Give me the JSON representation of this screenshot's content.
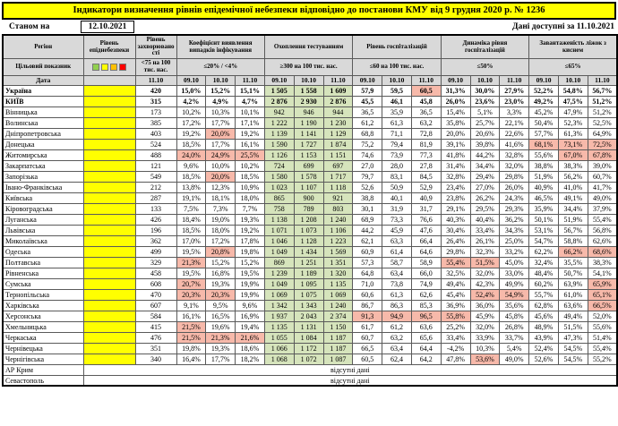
{
  "title": "Індикатори визначення рівнів епідемічної небезпеки відповідно до постанови КМУ від 9 грудня 2020 р. № 1236",
  "top": {
    "as_of_label": "Станом на",
    "as_of_date": "12.10.2021",
    "data_available": "Дані доступні за 11.10.2021"
  },
  "colors": {
    "title_bg": "#ffff00",
    "header_bg": "#d9d9d9",
    "level_yellow": "#ffff00",
    "green": "#d6e4bc",
    "red": "#f7b9aa"
  },
  "header": {
    "region": "Регіон",
    "level": "Рівень епіднебезпеки",
    "target_row_label": "Цільовий показник",
    "date_row_label": "Дата",
    "single_date": "11.10",
    "dates": [
      "09.10",
      "10.10",
      "11.10"
    ],
    "legend_colors": [
      "#92d050",
      "#ffff00",
      "#ffc000",
      "#ff0000"
    ],
    "groups": [
      {
        "label": "Рівень захворюваності",
        "target": "<75 на 100 тис. нас."
      },
      {
        "label": "Коефіцієнт виявлення випадків інфікування",
        "target": "≤20% / <4%"
      },
      {
        "label": "Охоплення тестуванням",
        "target": "≥300 на 100 тис. нас."
      },
      {
        "label": "Рівень госпіталізацій",
        "target": "≤60 на 100 тис. нас."
      },
      {
        "label": "Динаміка рівня госпіталізацій",
        "target": "≤50%"
      },
      {
        "label": "Завантаженість ліжок з киснем",
        "target": "≤65%"
      }
    ]
  },
  "rows": [
    {
      "region": "Україна",
      "bold": true,
      "values": [
        "420",
        "15,0%",
        "15,2%",
        "15,1%",
        "1 505",
        "1 558",
        "1 609",
        "57,9",
        "59,5",
        "60,5",
        "31,3%",
        "30,0%",
        "27,9%",
        "52,2%",
        "54,8%",
        "56,7%"
      ],
      "flags": "wwwwgggwwrwwwwww"
    },
    {
      "region": "КИЇВ",
      "bold": true,
      "values": [
        "315",
        "4,2%",
        "4,9%",
        "4,7%",
        "2 876",
        "2 930",
        "2 876",
        "45,5",
        "46,1",
        "45,8",
        "26,0%",
        "23,6%",
        "23,0%",
        "49,2%",
        "47,5%",
        "51,2%"
      ],
      "flags": "wwwwgggwwwwwwwww"
    },
    {
      "region": "Вінницька",
      "bold": false,
      "values": [
        "173",
        "10,2%",
        "10,3%",
        "10,1%",
        "942",
        "946",
        "944",
        "36,5",
        "35,9",
        "36,5",
        "15,4%",
        "5,1%",
        "3,3%",
        "45,2%",
        "47,9%",
        "51,2%"
      ],
      "flags": "wwwwgggwwwwwwwww"
    },
    {
      "region": "Волинська",
      "bold": false,
      "values": [
        "385",
        "17,2%",
        "17,7%",
        "17,1%",
        "1 222",
        "1 190",
        "1 230",
        "61,2",
        "61,3",
        "63,2",
        "35,8%",
        "25,7%",
        "22,1%",
        "50,4%",
        "52,3%",
        "52,5%"
      ],
      "flags": "wwwwgggwwwwwwwww"
    },
    {
      "region": "Дніпропетровська",
      "bold": false,
      "values": [
        "403",
        "19,2%",
        "20,0%",
        "19,2%",
        "1 139",
        "1 141",
        "1 129",
        "68,8",
        "71,1",
        "72,8",
        "20,0%",
        "20,6%",
        "22,6%",
        "57,7%",
        "61,3%",
        "64,9%"
      ],
      "flags": "wwrwgggwwwwwwwww"
    },
    {
      "region": "Донецька",
      "bold": false,
      "values": [
        "524",
        "18,5%",
        "17,7%",
        "16,1%",
        "1 590",
        "1 727",
        "1 874",
        "75,2",
        "79,4",
        "81,9",
        "39,1%",
        "39,8%",
        "41,6%",
        "68,1%",
        "73,1%",
        "72,5%"
      ],
      "flags": "wwwwgggwwwwwwrrr"
    },
    {
      "region": "Житомирська",
      "bold": false,
      "values": [
        "488",
        "24,0%",
        "24,9%",
        "25,5%",
        "1 126",
        "1 153",
        "1 151",
        "74,6",
        "73,9",
        "77,3",
        "41,8%",
        "44,2%",
        "32,8%",
        "55,6%",
        "67,0%",
        "67,8%"
      ],
      "flags": "wrrrgggwwwwwwwrr"
    },
    {
      "region": "Закарпатська",
      "bold": false,
      "values": [
        "121",
        "9,6%",
        "10,0%",
        "10,2%",
        "724",
        "699",
        "697",
        "27,0",
        "28,0",
        "27,8",
        "31,4%",
        "34,4%",
        "32,0%",
        "38,8%",
        "38,3%",
        "39,0%"
      ],
      "flags": "wwwwgggwwwwwwwww"
    },
    {
      "region": "Запорізька",
      "bold": false,
      "values": [
        "549",
        "18,5%",
        "20,0%",
        "18,5%",
        "1 580",
        "1 578",
        "1 717",
        "79,7",
        "83,1",
        "84,5",
        "32,8%",
        "29,4%",
        "29,8%",
        "51,9%",
        "56,2%",
        "60,7%"
      ],
      "flags": "wwrwgggwwwwwwwww"
    },
    {
      "region": "Івано-Франківська",
      "bold": false,
      "values": [
        "212",
        "13,8%",
        "12,3%",
        "10,9%",
        "1 023",
        "1 107",
        "1 118",
        "52,6",
        "50,9",
        "52,9",
        "23,4%",
        "27,0%",
        "26,0%",
        "40,9%",
        "41,0%",
        "41,7%"
      ],
      "flags": "wwwwgggwwwwwwwww"
    },
    {
      "region": "Київська",
      "bold": false,
      "values": [
        "287",
        "19,1%",
        "18,1%",
        "18,0%",
        "865",
        "900",
        "921",
        "38,8",
        "40,1",
        "40,9",
        "23,8%",
        "26,2%",
        "24,3%",
        "46,5%",
        "49,1%",
        "49,0%"
      ],
      "flags": "wwwwgggwwwwwwwww"
    },
    {
      "region": "Кіровоградська",
      "bold": false,
      "values": [
        "133",
        "7,5%",
        "7,3%",
        "7,7%",
        "758",
        "789",
        "803",
        "30,1",
        "31,9",
        "31,7",
        "29,1%",
        "29,5%",
        "29,3%",
        "35,9%",
        "34,4%",
        "37,9%"
      ],
      "flags": "wwwwgggwwwwwwwww"
    },
    {
      "region": "Луганська",
      "bold": false,
      "values": [
        "426",
        "18,4%",
        "19,0%",
        "19,3%",
        "1 138",
        "1 208",
        "1 240",
        "68,9",
        "73,3",
        "76,6",
        "40,3%",
        "40,4%",
        "36,2%",
        "50,1%",
        "51,9%",
        "55,4%"
      ],
      "flags": "wwwwgggwwwwwwwww"
    },
    {
      "region": "Львівська",
      "bold": false,
      "values": [
        "196",
        "18,5%",
        "18,0%",
        "19,2%",
        "1 071",
        "1 073",
        "1 106",
        "44,2",
        "45,9",
        "47,6",
        "30,4%",
        "33,4%",
        "34,3%",
        "53,1%",
        "56,7%",
        "56,8%"
      ],
      "flags": "wwwwgggwwwwwwwww"
    },
    {
      "region": "Миколаївська",
      "bold": false,
      "values": [
        "362",
        "17,0%",
        "17,2%",
        "17,8%",
        "1 046",
        "1 128",
        "1 223",
        "62,1",
        "63,3",
        "66,4",
        "26,4%",
        "26,1%",
        "25,0%",
        "54,7%",
        "58,8%",
        "62,6%"
      ],
      "flags": "wwwwgggwwwwwwwww"
    },
    {
      "region": "Одеська",
      "bold": false,
      "values": [
        "499",
        "19,5%",
        "20,8%",
        "19,8%",
        "1 049",
        "1 434",
        "1 569",
        "60,9",
        "61,4",
        "64,6",
        "29,8%",
        "32,3%",
        "33,2%",
        "62,2%",
        "66,2%",
        "68,6%"
      ],
      "flags": "wwrwgggwwwwwwwrr"
    },
    {
      "region": "Полтавська",
      "bold": false,
      "values": [
        "329",
        "21,3%",
        "15,2%",
        "15,2%",
        "869",
        "1 251",
        "1 351",
        "57,3",
        "58,7",
        "58,9",
        "55,4%",
        "51,5%",
        "45,0%",
        "32,4%",
        "35,5%",
        "38,3%"
      ],
      "flags": "wrwwgggwwwrrwwww"
    },
    {
      "region": "Рівненська",
      "bold": false,
      "values": [
        "458",
        "19,5%",
        "16,8%",
        "19,5%",
        "1 239",
        "1 189",
        "1 320",
        "64,8",
        "63,4",
        "66,0",
        "32,5%",
        "32,0%",
        "33,0%",
        "48,4%",
        "50,7%",
        "54,1%"
      ],
      "flags": "wwwwgggwwwwwwwww"
    },
    {
      "region": "Сумська",
      "bold": false,
      "values": [
        "608",
        "20,7%",
        "19,3%",
        "19,9%",
        "1 049",
        "1 095",
        "1 135",
        "71,0",
        "73,8",
        "74,9",
        "49,4%",
        "42,3%",
        "49,9%",
        "60,2%",
        "63,9%",
        "65,9%"
      ],
      "flags": "wrwwgggwwwwwwwwr"
    },
    {
      "region": "Тернопільська",
      "bold": false,
      "values": [
        "470",
        "20,3%",
        "20,3%",
        "19,9%",
        "1 069",
        "1 075",
        "1 069",
        "60,6",
        "61,3",
        "62,6",
        "45,4%",
        "52,4%",
        "54,9%",
        "55,7%",
        "61,0%",
        "65,1%"
      ],
      "flags": "wrrwgggwwwwrrwwr"
    },
    {
      "region": "Харківська",
      "bold": false,
      "values": [
        "607",
        "9,1%",
        "9,5%",
        "9,6%",
        "1 342",
        "1 343",
        "1 240",
        "86,7",
        "86,3",
        "85,3",
        "36,9%",
        "36,0%",
        "35,6%",
        "62,8%",
        "63,6%",
        "66,5%"
      ],
      "flags": "wwwwgggwwwwwwwwr"
    },
    {
      "region": "Херсонська",
      "bold": false,
      "values": [
        "584",
        "16,1%",
        "16,5%",
        "16,9%",
        "1 937",
        "2 043",
        "2 374",
        "91,3",
        "94,9",
        "96,5",
        "55,8%",
        "45,9%",
        "45,8%",
        "45,6%",
        "49,4%",
        "52,0%"
      ],
      "flags": "wwwwgggrrrrwwwww"
    },
    {
      "region": "Хмельницька",
      "bold": false,
      "values": [
        "415",
        "21,5%",
        "19,6%",
        "19,4%",
        "1 135",
        "1 131",
        "1 150",
        "61,7",
        "61,2",
        "63,6",
        "25,2%",
        "32,0%",
        "26,8%",
        "48,9%",
        "51,5%",
        "55,6%"
      ],
      "flags": "wrwwgggwwwwwwwww"
    },
    {
      "region": "Черкаська",
      "bold": false,
      "values": [
        "476",
        "21,5%",
        "21,3%",
        "21,6%",
        "1 055",
        "1 084",
        "1 187",
        "60,7",
        "63,2",
        "65,6",
        "33,4%",
        "33,9%",
        "33,7%",
        "43,9%",
        "47,3%",
        "51,4%"
      ],
      "flags": "wrrrgggwwwwwwwww"
    },
    {
      "region": "Чернівецька",
      "bold": false,
      "values": [
        "351",
        "19,8%",
        "19,3%",
        "18,6%",
        "1 066",
        "1 172",
        "1 187",
        "66,5",
        "63,4",
        "64,4",
        "-4,2%",
        "10,3%",
        "5,4%",
        "52,4%",
        "54,5%",
        "55,4%"
      ],
      "flags": "wwwwgggwwwwwwwww"
    },
    {
      "region": "Чернігівська",
      "bold": false,
      "values": [
        "340",
        "16,4%",
        "17,7%",
        "18,2%",
        "1 068",
        "1 072",
        "1 087",
        "60,5",
        "62,4",
        "64,2",
        "47,8%",
        "53,6%",
        "49,0%",
        "52,6%",
        "54,5%",
        "55,2%"
      ],
      "flags": "wwwwgggwwwwrwwww"
    }
  ],
  "no_data_rows": [
    {
      "region": "АР Крим",
      "text": "відсутні дані"
    },
    {
      "region": "Севастополь",
      "text": "відсутні дані"
    }
  ]
}
